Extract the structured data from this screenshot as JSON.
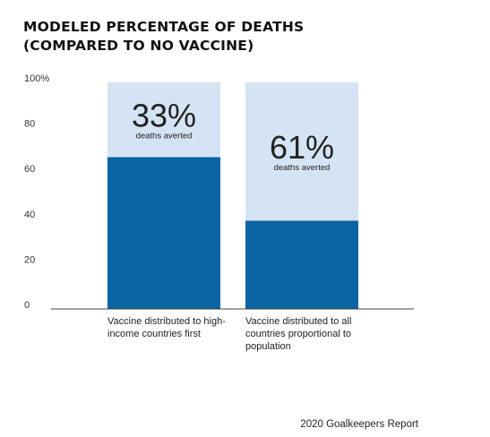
{
  "title_lines": [
    "MODELED PERCENTAGE OF DEATHS",
    "(COMPARED TO NO VACCINE)"
  ],
  "source": "2020 Goalkeepers Report",
  "chart_data": {
    "type": "bar",
    "stacked": true,
    "title": "MODELED PERCENTAGE OF DEATHS (COMPARED TO NO VACCINE)",
    "categories": [
      "Vaccine distributed to high-income countries first",
      "Vaccine distributed to all countries proportional to population"
    ],
    "category_lines": [
      [
        "Vaccine distributed to high-",
        "income countries first"
      ],
      [
        "Vaccine distributed to all",
        "countries proportional to",
        "population"
      ]
    ],
    "series": [
      {
        "values": [
          67,
          39
        ],
        "color": "#0b64a3"
      },
      {
        "values": [
          33,
          61
        ],
        "color": "#d5e4f4"
      }
    ],
    "annotations": [
      {
        "value_label": "33%",
        "sub_label": "deaths averted"
      },
      {
        "value_label": "61%",
        "sub_label": "deaths averted"
      }
    ],
    "yticks": [
      "0",
      "20",
      "40",
      "60",
      "80",
      "100%"
    ],
    "ytick_values": [
      0,
      20,
      40,
      60,
      80,
      100
    ],
    "ylim": [
      0,
      100
    ],
    "grid": false,
    "legend": "none"
  }
}
